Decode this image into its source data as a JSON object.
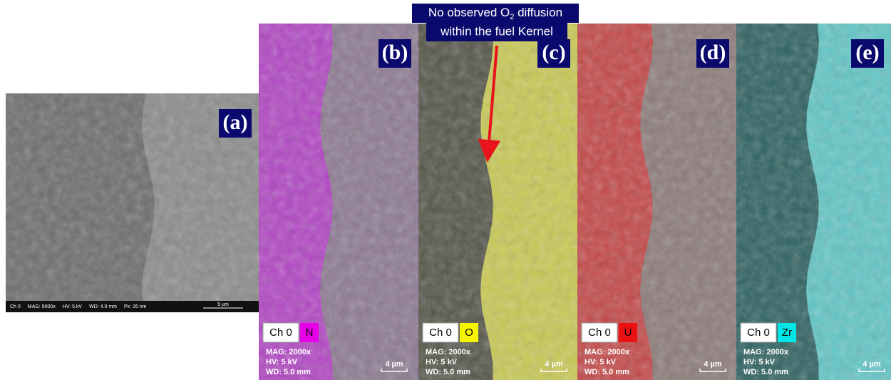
{
  "annotation": {
    "line1_start": "No observed O",
    "subscript": "2",
    "line1_end": " diffusion",
    "line2": "within the fuel Kernel"
  },
  "panels": [
    {
      "label": "(a)",
      "channel": "Ch 0",
      "info": [
        "MAG: 5000x",
        "HV: 5 kV",
        "WD: 4.9 mm",
        "Px: 26 nm"
      ],
      "scale": "5 µm"
    },
    {
      "label": "(b)",
      "channel": "Ch 0",
      "element": "N",
      "info": [
        "MAG: 2000x",
        "HV: 5 kV",
        "WD: 5.0 mm"
      ],
      "scale": "4 µm"
    },
    {
      "label": "(c)",
      "channel": "Ch 0",
      "element": "O",
      "info": [
        "MAG: 2000x",
        "HV: 5 kV",
        "WD: 5.0 mm"
      ],
      "scale": "4 µm"
    },
    {
      "label": "(d)",
      "channel": "Ch 0",
      "element": "U",
      "info": [
        "MAG: 2000x",
        "HV: 5 kV",
        "WD: 5.0 mm"
      ],
      "scale": "4 µm"
    },
    {
      "label": "(e)",
      "channel": "Ch 0",
      "element": "Zr",
      "info": [
        "MAG: 2000x",
        "HV: 5 kV",
        "WD: 5.0 mm"
      ],
      "scale": "4 µm"
    }
  ]
}
